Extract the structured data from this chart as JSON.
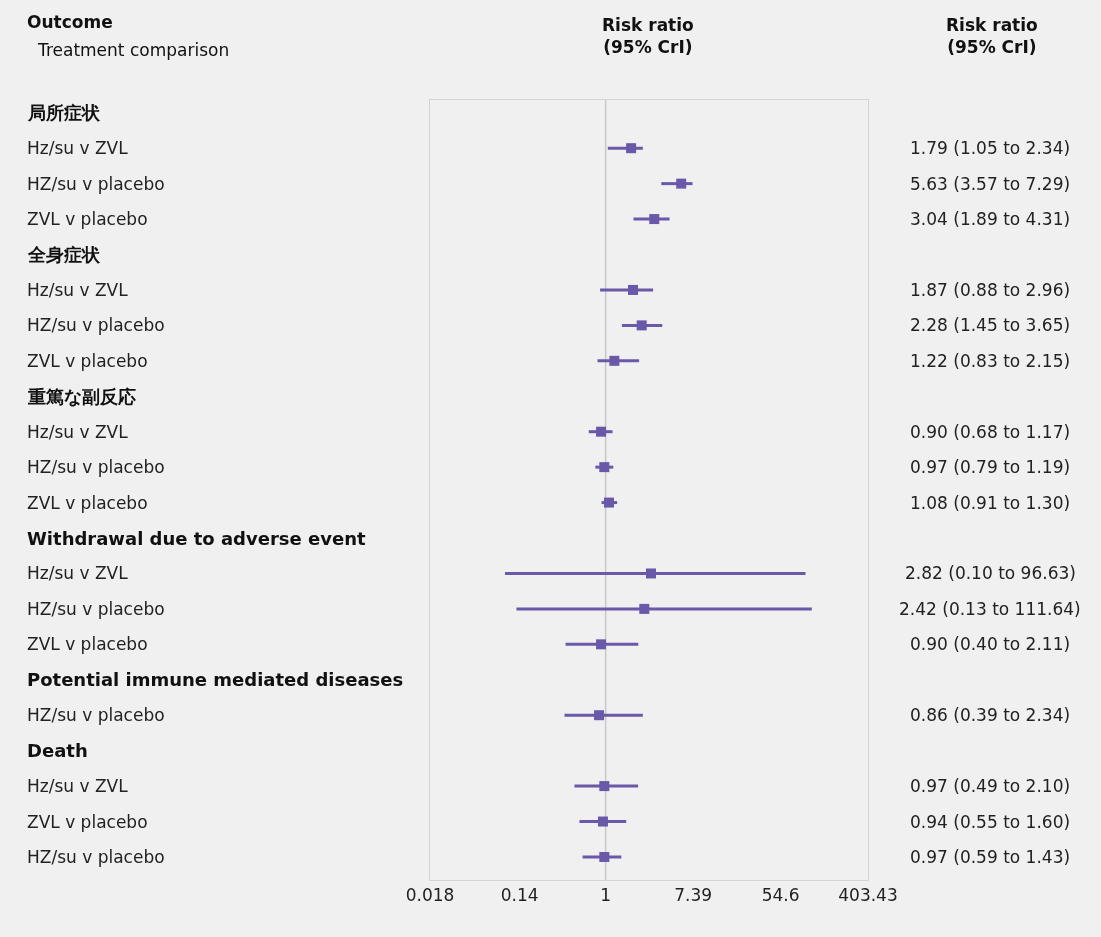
{
  "chart_data": {
    "type": "scatter",
    "orientation": "horizontal",
    "marker": "square",
    "categories": [
      "局所症状",
      "Hz/su v ZVL",
      "HZ/su v placebo",
      "ZVL v placebo",
      "全身症状",
      "Hz/su v ZVL",
      "HZ/su v placebo",
      "ZVL v placebo",
      "重篤な副反応",
      "Hz/su v ZVL",
      "HZ/su v placebo",
      "ZVL v placebo",
      "Withdrawal due to adverse event",
      "Hz/su v ZVL",
      "HZ/su v placebo",
      "ZVL v placebo",
      "Potential immune mediated diseases",
      "HZ/su v placebo",
      "Death",
      "Hz/su v ZVL",
      "ZVL v placebo",
      "HZ/su v placebo"
    ],
    "series": [
      {
        "color": "#6a58a8",
        "values": [
          null,
          1.79,
          5.63,
          3.04,
          null,
          1.87,
          2.28,
          1.22,
          null,
          0.9,
          0.97,
          1.08,
          null,
          2.82,
          2.42,
          0.9,
          null,
          0.86,
          null,
          0.97,
          0.94,
          0.97
        ],
        "errors": [
          null,
          [
            1.05,
            2.34
          ],
          [
            3.57,
            7.29
          ],
          [
            1.89,
            4.31
          ],
          null,
          [
            0.88,
            2.96
          ],
          [
            1.45,
            3.65
          ],
          [
            0.83,
            2.15
          ],
          null,
          [
            0.68,
            1.17
          ],
          [
            0.79,
            1.19
          ],
          [
            0.91,
            1.3
          ],
          null,
          [
            0.1,
            96.63
          ],
          [
            0.13,
            111.64
          ],
          [
            0.4,
            2.11
          ],
          null,
          [
            0.39,
            2.34
          ],
          null,
          [
            0.49,
            2.1
          ],
          [
            0.55,
            1.6
          ],
          [
            0.59,
            1.43
          ]
        ],
        "value_labels": [
          null,
          "1.79 (1.05 to 2.34)",
          "5.63 (3.57 to 7.29)",
          "3.04 (1.89 to 4.31)",
          null,
          "1.87 (0.88 to 2.96)",
          "2.28 (1.45 to 3.65)",
          "1.22 (0.83 to 2.15)",
          null,
          "0.90 (0.68 to 1.17)",
          "0.97 (0.79 to 1.19)",
          "1.08 (0.91 to 1.30)",
          null,
          "2.82 (0.10 to 96.63)",
          "2.42 (0.13 to 111.64)",
          "0.90 (0.40 to 2.11)",
          null,
          "0.86 (0.39 to 2.34)",
          null,
          "0.97 (0.49 to 2.10)",
          "0.94 (0.55 to 1.60)",
          "0.97 (0.59 to 1.43)"
        ]
      }
    ],
    "log": "x",
    "xlim": [
      0.018,
      403.43
    ],
    "xticks": [
      0.018,
      0.14,
      1,
      7.39,
      54.6,
      403.43
    ],
    "ref_lines": [
      {
        "axis": "x",
        "value": 1,
        "color": "#c8c8c8"
      }
    ],
    "annotations": [
      "Outcome",
      "Treatment comparison",
      "Risk ratio\n(95% CrI)",
      "Risk ratio\n(95% CrI)"
    ],
    "grid": false
  }
}
